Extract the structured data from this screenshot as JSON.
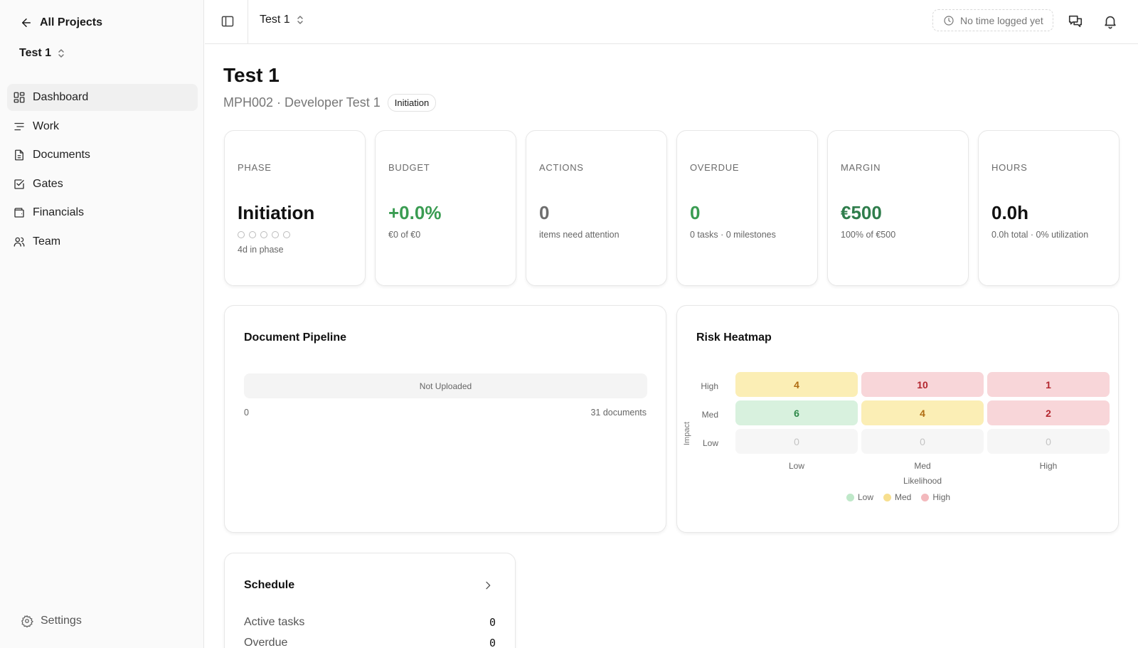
{
  "sidebar": {
    "back_label": "All Projects",
    "project_name": "Test 1",
    "items": [
      {
        "label": "Dashboard",
        "icon": "dashboard-icon",
        "active": true
      },
      {
        "label": "Work",
        "icon": "list-icon"
      },
      {
        "label": "Documents",
        "icon": "document-icon"
      },
      {
        "label": "Gates",
        "icon": "checkbox-icon"
      },
      {
        "label": "Financials",
        "icon": "wallet-icon"
      },
      {
        "label": "Team",
        "icon": "users-icon"
      }
    ],
    "settings_label": "Settings"
  },
  "topbar": {
    "project_name": "Test 1",
    "time_status": "No time logged yet"
  },
  "header": {
    "title": "Test 1",
    "subtitle": "MPH002 · Developer Test 1",
    "phase_badge": "Initiation"
  },
  "kpis": [
    {
      "label": "PHASE",
      "value": "Initiation",
      "sub": "4d in phase",
      "dots_total": 5,
      "dots_filled": 0
    },
    {
      "label": "BUDGET",
      "value": "+0.0%",
      "sub": "€0 of €0",
      "color": "#3a9c52"
    },
    {
      "label": "ACTIONS",
      "value": "0",
      "sub": "items need attention",
      "color": "#6e6e6e"
    },
    {
      "label": "OVERDUE",
      "value": "0",
      "sub": "0 tasks · 0 milestones",
      "color": "#3a9c52"
    },
    {
      "label": "MARGIN",
      "value": "€500",
      "sub": "100% of €500",
      "color": "#2f7d4c"
    },
    {
      "label": "HOURS",
      "value": "0.0h",
      "sub": "0.0h total · 0% utilization",
      "color": "#111111"
    }
  ],
  "pipeline": {
    "title": "Document Pipeline",
    "bar_label": "Not Uploaded",
    "min_label": "0",
    "max_label": "31 documents"
  },
  "heatmap": {
    "title": "Risk Heatmap",
    "y_axis_label": "Impact",
    "x_axis_label": "Likelihood",
    "rows": [
      "High",
      "Med",
      "Low"
    ],
    "cols": [
      "Low",
      "Med",
      "High"
    ],
    "values": [
      [
        4,
        10,
        1
      ],
      [
        6,
        4,
        2
      ],
      [
        0,
        0,
        0
      ]
    ],
    "levels": [
      [
        "med",
        "high",
        "high"
      ],
      [
        "low",
        "med",
        "high"
      ],
      [
        "none",
        "none",
        "none"
      ]
    ],
    "legend": [
      {
        "label": "Low",
        "color": "#bfe8c9"
      },
      {
        "label": "Med",
        "color": "#f7df8f"
      },
      {
        "label": "High",
        "color": "#f3b9bd"
      }
    ]
  },
  "schedule": {
    "title": "Schedule",
    "rows": [
      {
        "label": "Active tasks",
        "value": "0"
      },
      {
        "label": "Overdue",
        "value": "0"
      }
    ]
  }
}
